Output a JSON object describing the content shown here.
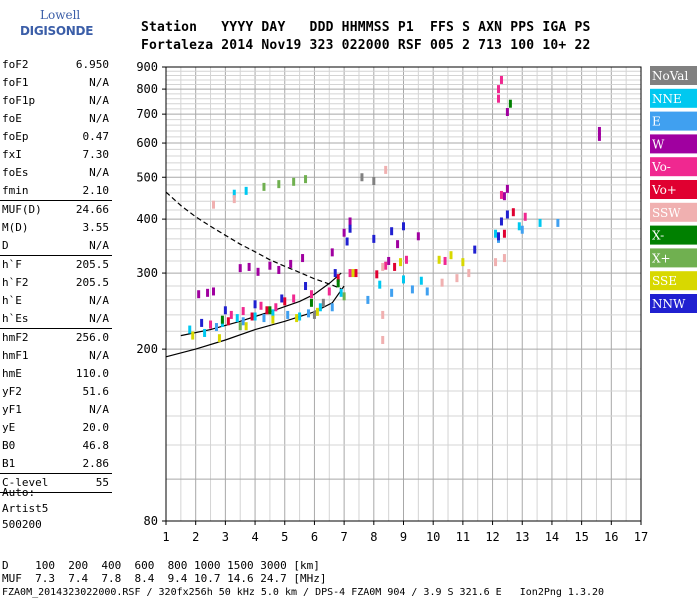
{
  "logo": {
    "line1": "Lowell",
    "line2": "DIGISONDE"
  },
  "header": {
    "labels": "Station   YYYY DAY   DDD HHMMSS P1  FFS S AXN PPS IGA PS",
    "values": "Fortaleza 2014 Nov19 323 022000 RSF 005 2 713 100 10+ 22"
  },
  "params_groups": [
    [
      {
        "k": "foF2",
        "v": "6.950"
      },
      {
        "k": "foF1",
        "v": "N/A"
      },
      {
        "k": "foF1p",
        "v": "N/A"
      },
      {
        "k": "foE",
        "v": "N/A"
      },
      {
        "k": "foEp",
        "v": "0.47"
      },
      {
        "k": "fxI",
        "v": "7.30"
      },
      {
        "k": "foEs",
        "v": "N/A"
      },
      {
        "k": "fmin",
        "v": "2.10"
      }
    ],
    [
      {
        "k": "MUF(D)",
        "v": "24.66"
      },
      {
        "k": "M(D)",
        "v": "3.55"
      },
      {
        "k": "D",
        "v": "N/A"
      }
    ],
    [
      {
        "k": "h`F",
        "v": "205.5"
      },
      {
        "k": "h`F2",
        "v": "205.5"
      },
      {
        "k": "h`E",
        "v": "N/A"
      },
      {
        "k": "h`Es",
        "v": "N/A"
      }
    ],
    [
      {
        "k": "hmF2",
        "v": "256.0"
      },
      {
        "k": "hmF1",
        "v": "N/A"
      },
      {
        "k": "hmE",
        "v": "110.0"
      },
      {
        "k": "yF2",
        "v": "51.6"
      },
      {
        "k": "yF1",
        "v": "N/A"
      },
      {
        "k": "yE",
        "v": "20.0"
      },
      {
        "k": "B0",
        "v": "46.8"
      },
      {
        "k": "B1",
        "v": "2.86"
      }
    ],
    [
      {
        "k": "C-level",
        "v": "55"
      }
    ]
  ],
  "auto": {
    "line1": "Auto:",
    "line2": "Artist5",
    "line3": "500200"
  },
  "legend": [
    {
      "label": "NoVal",
      "color": "#808080"
    },
    {
      "label": "NNE",
      "color": "#00c8f0"
    },
    {
      "label": "E",
      "color": "#40a0f0"
    },
    {
      "label": "W",
      "color": "#a000a0"
    },
    {
      "label": "Vo-",
      "color": "#f02890"
    },
    {
      "label": "Vo+",
      "color": "#e00030"
    },
    {
      "label": "SSW",
      "color": "#f0b0b0"
    },
    {
      "label": "X-",
      "color": "#008000"
    },
    {
      "label": "X+",
      "color": "#70b050"
    },
    {
      "label": "SSE",
      "color": "#d8d800"
    },
    {
      "label": "NNW",
      "color": "#2020d0"
    }
  ],
  "chart_data": {
    "type": "scatter",
    "title": "",
    "xlabel": "",
    "ylabel": "",
    "x_ticks": [
      1,
      2,
      3,
      4,
      5,
      6,
      7,
      8,
      9,
      10,
      11,
      12,
      13,
      14,
      15,
      16,
      17
    ],
    "y_ticks": [
      80,
      200,
      300,
      400,
      500,
      600,
      700,
      800,
      900
    ],
    "xlim": [
      1,
      17
    ],
    "ylim": [
      80,
      900
    ],
    "y_scale": "log",
    "grid": true,
    "series": [
      {
        "name": "W",
        "color": "#a000a0",
        "points": [
          [
            2.1,
            268
          ],
          [
            2.4,
            270
          ],
          [
            2.6,
            272
          ],
          [
            3.5,
            308
          ],
          [
            3.8,
            310
          ],
          [
            4.1,
            302
          ],
          [
            4.5,
            312
          ],
          [
            4.8,
            305
          ],
          [
            5.2,
            315
          ],
          [
            5.6,
            325
          ],
          [
            6.6,
            335
          ],
          [
            7.0,
            372
          ],
          [
            7.2,
            395
          ],
          [
            8.5,
            320
          ],
          [
            8.8,
            350
          ],
          [
            9.5,
            365
          ],
          [
            12.4,
            452
          ],
          [
            12.5,
            470
          ],
          [
            15.6,
            620
          ],
          [
            15.6,
            640
          ],
          [
            12.5,
            708
          ]
        ]
      },
      {
        "name": "Vo-",
        "color": "#f02890",
        "points": [
          [
            2.5,
            228
          ],
          [
            3.2,
            240
          ],
          [
            3.6,
            245
          ],
          [
            4.2,
            252
          ],
          [
            4.7,
            250
          ],
          [
            5.3,
            262
          ],
          [
            5.9,
            268
          ],
          [
            6.5,
            272
          ],
          [
            7.2,
            300
          ],
          [
            8.4,
            312
          ],
          [
            9.1,
            322
          ],
          [
            10.4,
            320
          ],
          [
            12.2,
            760
          ],
          [
            12.2,
            800
          ],
          [
            12.3,
            840
          ],
          [
            12.3,
            455
          ],
          [
            13.1,
            405
          ]
        ]
      },
      {
        "name": "Vo+",
        "color": "#e00030",
        "points": [
          [
            3.1,
            232
          ],
          [
            3.9,
            238
          ],
          [
            4.4,
            246
          ],
          [
            5.0,
            258
          ],
          [
            6.8,
            292
          ],
          [
            7.4,
            300
          ],
          [
            8.1,
            298
          ],
          [
            8.7,
            310
          ],
          [
            12.4,
            370
          ],
          [
            12.7,
            415
          ]
        ]
      },
      {
        "name": "NNE",
        "color": "#00c8f0",
        "points": [
          [
            1.8,
            222
          ],
          [
            2.3,
            218
          ],
          [
            2.9,
            230
          ],
          [
            3.4,
            236
          ],
          [
            4.0,
            238
          ],
          [
            4.6,
            242
          ],
          [
            5.5,
            238
          ],
          [
            6.2,
            250
          ],
          [
            6.9,
            270
          ],
          [
            8.2,
            282
          ],
          [
            9.0,
            290
          ],
          [
            9.6,
            288
          ],
          [
            12.1,
            370
          ],
          [
            12.9,
            385
          ],
          [
            13.6,
            392
          ],
          [
            3.3,
            458
          ],
          [
            3.7,
            465
          ]
        ]
      },
      {
        "name": "E",
        "color": "#40a0f0",
        "points": [
          [
            2.7,
            225
          ],
          [
            3.6,
            232
          ],
          [
            4.3,
            236
          ],
          [
            5.1,
            240
          ],
          [
            5.8,
            242
          ],
          [
            6.6,
            250
          ],
          [
            7.8,
            260
          ],
          [
            8.6,
            270
          ],
          [
            9.3,
            275
          ],
          [
            9.8,
            272
          ],
          [
            12.2,
            360
          ],
          [
            13.0,
            378
          ],
          [
            14.2,
            392
          ]
        ]
      },
      {
        "name": "NNW",
        "color": "#2020d0",
        "points": [
          [
            2.2,
            230
          ],
          [
            3.0,
            246
          ],
          [
            4.0,
            254
          ],
          [
            4.9,
            262
          ],
          [
            5.7,
            280
          ],
          [
            6.7,
            300
          ],
          [
            7.1,
            355
          ],
          [
            7.2,
            380
          ],
          [
            8.0,
            360
          ],
          [
            8.6,
            375
          ],
          [
            9.0,
            385
          ],
          [
            11.4,
            340
          ],
          [
            12.2,
            365
          ],
          [
            12.3,
            395
          ],
          [
            12.5,
            410
          ]
        ]
      },
      {
        "name": "SSW",
        "color": "#f0b0b0",
        "points": [
          [
            2.6,
            432
          ],
          [
            3.3,
            445
          ],
          [
            8.3,
            210
          ],
          [
            8.3,
            240
          ],
          [
            8.3,
            310
          ],
          [
            8.4,
            520
          ],
          [
            10.3,
            285
          ],
          [
            10.8,
            292
          ],
          [
            11.2,
            300
          ],
          [
            12.1,
            318
          ],
          [
            12.4,
            325
          ]
        ]
      },
      {
        "name": "X-",
        "color": "#008000",
        "points": [
          [
            2.9,
            234
          ],
          [
            4.5,
            246
          ],
          [
            5.9,
            256
          ],
          [
            6.8,
            284
          ],
          [
            12.6,
            740
          ]
        ]
      },
      {
        "name": "X+",
        "color": "#70b050",
        "points": [
          [
            4.3,
            475
          ],
          [
            4.8,
            482
          ],
          [
            5.3,
            488
          ],
          [
            5.7,
            495
          ],
          [
            3.5,
            226
          ],
          [
            7.0,
            265
          ]
        ]
      },
      {
        "name": "SSE",
        "color": "#d8d800",
        "points": [
          [
            1.9,
            215
          ],
          [
            2.8,
            212
          ],
          [
            3.7,
            226
          ],
          [
            4.6,
            234
          ],
          [
            5.4,
            236
          ],
          [
            6.1,
            244
          ],
          [
            7.3,
            300
          ],
          [
            8.9,
            318
          ],
          [
            10.2,
            322
          ],
          [
            10.6,
            330
          ],
          [
            11.0,
            318
          ]
        ]
      },
      {
        "name": "NoVal",
        "color": "#808080",
        "points": [
          [
            6.0,
            240
          ],
          [
            6.3,
            256
          ],
          [
            7.6,
            500
          ],
          [
            8.0,
            490
          ]
        ]
      }
    ],
    "curves": {
      "profile_lower_x": [
        1.0,
        2.0,
        3.0,
        4.0,
        5.0,
        6.0,
        6.6,
        7.0
      ],
      "profile_lower_y": [
        192,
        200,
        210,
        222,
        232,
        244,
        256,
        280
      ],
      "profile_dashed_x": [
        1.0,
        1.5,
        2.0,
        2.5,
        3.0,
        3.5,
        4.0,
        4.5,
        5.0,
        5.5,
        6.0,
        6.5,
        6.9
      ],
      "profile_dashed_y": [
        462,
        430,
        405,
        385,
        367,
        350,
        336,
        322,
        311,
        301,
        291,
        283,
        276
      ],
      "profile_upper_x": [
        1.5,
        2.5,
        3.5,
        4.5,
        5.5,
        6.0,
        6.5,
        6.9
      ],
      "profile_upper_y": [
        215,
        222,
        232,
        244,
        258,
        268,
        284,
        300
      ]
    }
  },
  "footer": {
    "line1": "D    100  200  400  600  800 1000 1500 3000 [km]",
    "line2": "MUF  7.3  7.4  7.8  8.4  9.4 10.7 14.6 24.7 [MHz]",
    "line3": "FZA0M_2014323022000.RSF / 320fx256h 50 kHz 5.0 km / DPS-4 FZA0M 904 / 3.9 S 321.6 E   Ion2Png 1.3.20"
  }
}
